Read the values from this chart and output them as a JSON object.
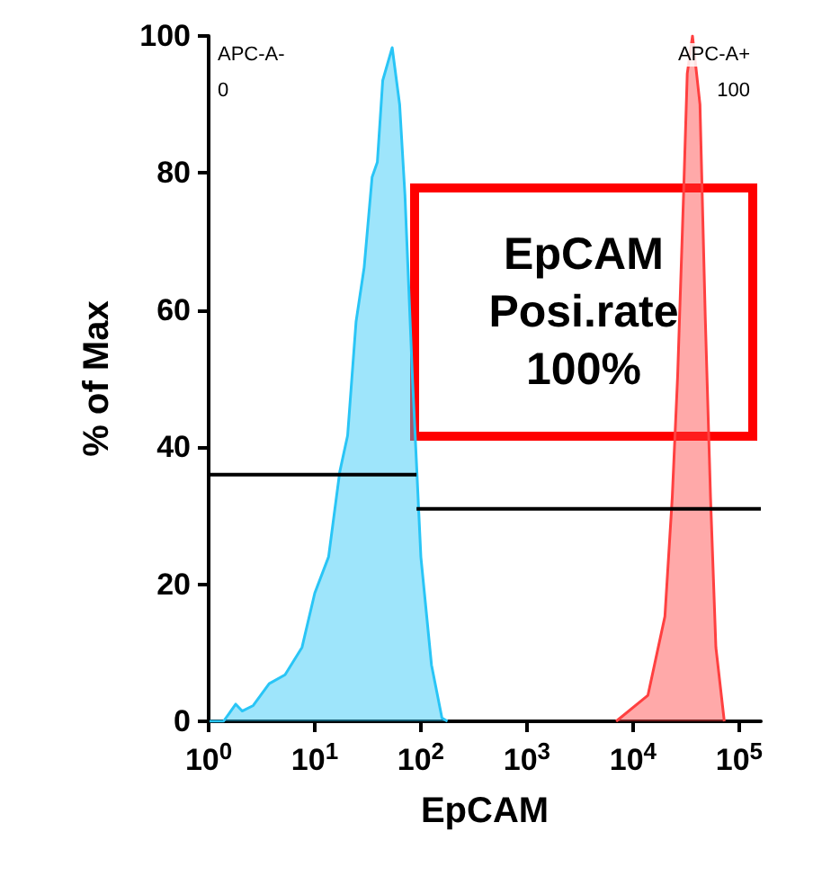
{
  "chart_data": {
    "type": "area",
    "xlabel": "EpCAM",
    "ylabel": "% of Max",
    "log": "x",
    "grid": false,
    "marker": "none",
    "xlim": [
      1,
      160000
    ],
    "ylim": [
      0,
      100
    ],
    "xticks": [
      {
        "value": 1,
        "label": "10$^{0}$"
      },
      {
        "value": 10,
        "label": "10$^{1}$"
      },
      {
        "value": 100,
        "label": "10$^{2}$"
      },
      {
        "value": 1000,
        "label": "10$^{3}$"
      },
      {
        "value": 10000,
        "label": "10$^{4}$"
      },
      {
        "value": 100000,
        "label": "10$^{5}$"
      }
    ],
    "yticks": [
      0,
      20,
      40,
      60,
      80,
      100
    ],
    "series": [
      {
        "color": "#29c5f6",
        "x": [
          1.02,
          1.38,
          1.8,
          2.07,
          2.63,
          3.72,
          5.25,
          7.59,
          10,
          13.5,
          17.2,
          20.4,
          24.5,
          29.2,
          34.7,
          38.9,
          43.7,
          53.7,
          63.1,
          70.8,
          83.2,
          100,
          126,
          158,
          178
        ],
        "values": [
          0,
          0,
          2.5,
          1.5,
          2.3,
          5.5,
          6.8,
          10.8,
          18.7,
          24,
          36.4,
          41.7,
          58.3,
          66.2,
          79.4,
          81.6,
          93.5,
          98.3,
          90,
          76.8,
          50.4,
          24,
          8.2,
          0.5,
          0
        ]
      },
      {
        "color": "#ff4040",
        "x": [
          6920,
          13800,
          19950,
          23400,
          26300,
          29900,
          32400,
          36300,
          42700,
          47900,
          53700,
          60300,
          72400
        ],
        "values": [
          0,
          3.8,
          15.3,
          32.7,
          50.4,
          76.8,
          94.5,
          100,
          90,
          59,
          32.7,
          10.8,
          0
        ]
      },
      {
        "type": "line",
        "color": "#000000",
        "x": [
          1,
          91
        ],
        "values": [
          36,
          36
        ]
      },
      {
        "type": "line",
        "color": "#000000",
        "x": [
          91,
          160000
        ],
        "values": [
          31,
          31
        ]
      }
    ],
    "annotations": [
      "APC-A-",
      "0",
      "APC-A+",
      "100",
      "EpCAM\nPosi.rate\n100%"
    ]
  }
}
